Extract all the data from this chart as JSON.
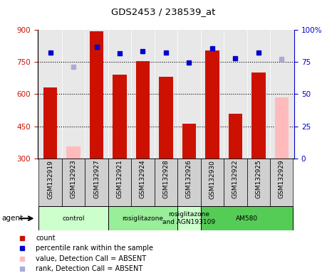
{
  "title": "GDS2453 / 238539_at",
  "samples": [
    "GSM132919",
    "GSM132923",
    "GSM132927",
    "GSM132921",
    "GSM132924",
    "GSM132928",
    "GSM132926",
    "GSM132930",
    "GSM132922",
    "GSM132925",
    "GSM132929"
  ],
  "count_values": [
    630,
    null,
    893,
    693,
    755,
    680,
    462,
    803,
    510,
    700,
    null
  ],
  "count_absent_values": [
    null,
    355,
    null,
    null,
    null,
    null,
    null,
    null,
    null,
    null,
    585
  ],
  "percentile_left_values": [
    795,
    null,
    820,
    790,
    800,
    793,
    748,
    815,
    768,
    793,
    null
  ],
  "percentile_left_absent": [
    null,
    727,
    null,
    null,
    null,
    null,
    null,
    null,
    null,
    null,
    763
  ],
  "absent_flags": [
    false,
    true,
    false,
    false,
    false,
    false,
    false,
    false,
    false,
    false,
    true
  ],
  "ylim_left": [
    300,
    900
  ],
  "ylim_right": [
    0,
    100
  ],
  "yticks_left": [
    300,
    450,
    600,
    750,
    900
  ],
  "yticks_right": [
    0,
    25,
    50,
    75,
    100
  ],
  "yright_labels": [
    "0",
    "25",
    "50",
    "75",
    "100%"
  ],
  "hlines": [
    450,
    600,
    750
  ],
  "groups": [
    {
      "label": "control",
      "start": 0,
      "end": 2,
      "color": "#ccffcc"
    },
    {
      "label": "rosiglitazone",
      "start": 3,
      "end": 5,
      "color": "#99ee99"
    },
    {
      "label": "rosiglitazone\nand AGN193109",
      "start": 6,
      "end": 6,
      "color": "#ccffcc"
    },
    {
      "label": "AM580",
      "start": 7,
      "end": 10,
      "color": "#55cc55"
    }
  ],
  "bar_color_present": "#cc1100",
  "bar_color_absent": "#ffbbbb",
  "dot_color_present": "#0000cc",
  "dot_color_absent": "#aaaadd",
  "bar_width": 0.6,
  "legend_items": [
    {
      "color": "#cc1100",
      "label": "count",
      "marker": "s"
    },
    {
      "color": "#0000cc",
      "label": "percentile rank within the sample",
      "marker": "s"
    },
    {
      "color": "#ffbbbb",
      "label": "value, Detection Call = ABSENT",
      "marker": "s"
    },
    {
      "color": "#aaaadd",
      "label": "rank, Detection Call = ABSENT",
      "marker": "s"
    }
  ],
  "chart_bg": "#e8e8e8",
  "label_box_bg": "#d0d0d0"
}
